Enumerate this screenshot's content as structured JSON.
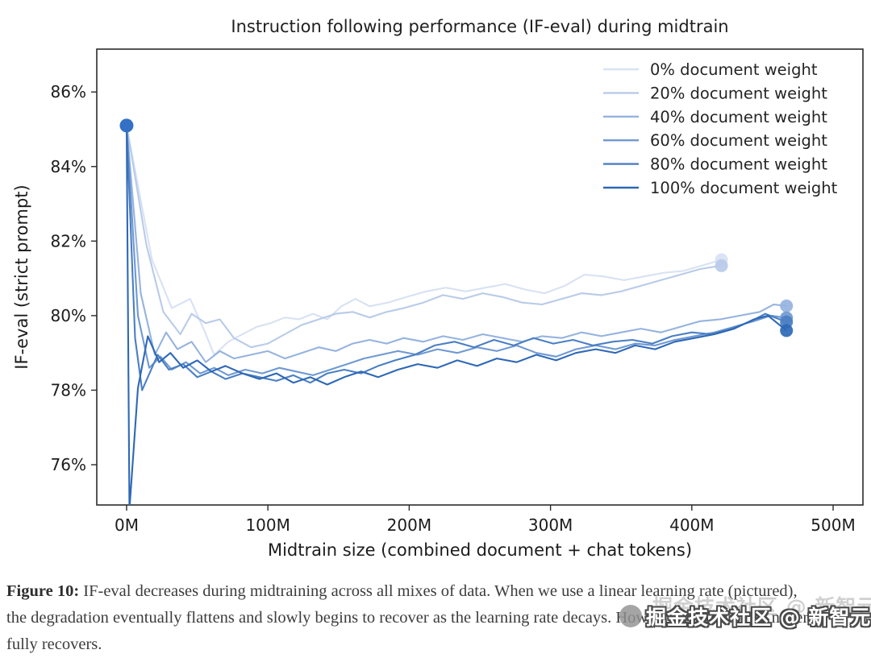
{
  "chart_data": {
    "type": "line",
    "title": "Instruction following performance (IF-eval) during midtrain",
    "xlabel": "Midtrain size (combined document + chat tokens)",
    "ylabel": "IF-eval (strict prompt)",
    "xlim": [
      -21.1,
      521.1
    ],
    "ylim": [
      74.92,
      87.15
    ],
    "grid": false,
    "legend_position": "upper right",
    "x_ticks": [
      {
        "v": 0,
        "label": "0M"
      },
      {
        "v": 100,
        "label": "100M"
      },
      {
        "v": 200,
        "label": "200M"
      },
      {
        "v": 300,
        "label": "300M"
      },
      {
        "v": 400,
        "label": "400M"
      },
      {
        "v": 500,
        "label": "500M"
      }
    ],
    "y_ticks": [
      {
        "v": 76,
        "label": "76%"
      },
      {
        "v": 78,
        "label": "78%"
      },
      {
        "v": 80,
        "label": "80%"
      },
      {
        "v": 82,
        "label": "82%"
      },
      {
        "v": 84,
        "label": "84%"
      },
      {
        "v": 86,
        "label": "86%"
      }
    ],
    "start_point": {
      "x": 0,
      "y": 85.1,
      "color": "#3370c6"
    },
    "series": [
      {
        "name": "0% document weight",
        "color": "#d8e2f3",
        "points": [
          [
            0,
            85.1
          ],
          [
            18,
            81.5
          ],
          [
            32,
            80.2
          ],
          [
            45,
            80.45
          ],
          [
            55,
            79.6
          ],
          [
            62,
            78.95
          ],
          [
            72,
            79.3
          ],
          [
            82,
            79.5
          ],
          [
            92,
            79.7
          ],
          [
            102,
            79.8
          ],
          [
            112,
            79.95
          ],
          [
            122,
            79.9
          ],
          [
            132,
            80.05
          ],
          [
            142,
            79.9
          ],
          [
            152,
            80.25
          ],
          [
            162,
            80.45
          ],
          [
            172,
            80.25
          ],
          [
            185,
            80.35
          ],
          [
            198,
            80.5
          ],
          [
            212,
            80.65
          ],
          [
            226,
            80.75
          ],
          [
            240,
            80.65
          ],
          [
            254,
            80.75
          ],
          [
            268,
            80.85
          ],
          [
            282,
            80.7
          ],
          [
            296,
            80.6
          ],
          [
            310,
            80.8
          ],
          [
            324,
            81.1
          ],
          [
            338,
            81.05
          ],
          [
            352,
            80.95
          ],
          [
            366,
            81.05
          ],
          [
            380,
            81.15
          ],
          [
            394,
            81.2
          ],
          [
            408,
            81.35
          ],
          [
            421,
            81.5
          ]
        ]
      },
      {
        "name": "20% document weight",
        "color": "#b8cbe9",
        "points": [
          [
            0,
            85.1
          ],
          [
            14,
            81.9
          ],
          [
            26,
            80.1
          ],
          [
            38,
            79.5
          ],
          [
            46,
            80.05
          ],
          [
            56,
            79.8
          ],
          [
            66,
            79.9
          ],
          [
            76,
            79.4
          ],
          [
            88,
            79.15
          ],
          [
            100,
            79.25
          ],
          [
            112,
            79.5
          ],
          [
            124,
            79.75
          ],
          [
            136,
            79.9
          ],
          [
            148,
            80.05
          ],
          [
            160,
            80.1
          ],
          [
            172,
            79.95
          ],
          [
            184,
            80.1
          ],
          [
            196,
            80.2
          ],
          [
            210,
            80.35
          ],
          [
            224,
            80.55
          ],
          [
            238,
            80.45
          ],
          [
            252,
            80.6
          ],
          [
            266,
            80.5
          ],
          [
            280,
            80.35
          ],
          [
            294,
            80.3
          ],
          [
            308,
            80.45
          ],
          [
            322,
            80.6
          ],
          [
            336,
            80.55
          ],
          [
            350,
            80.65
          ],
          [
            364,
            80.8
          ],
          [
            378,
            80.95
          ],
          [
            392,
            81.1
          ],
          [
            406,
            81.25
          ],
          [
            421,
            81.34
          ]
        ]
      },
      {
        "name": "40% document weight",
        "color": "#95b3df",
        "points": [
          [
            0,
            85.1
          ],
          [
            10,
            80.6
          ],
          [
            20,
            78.95
          ],
          [
            28,
            79.55
          ],
          [
            36,
            79.1
          ],
          [
            46,
            79.3
          ],
          [
            56,
            78.75
          ],
          [
            66,
            79.05
          ],
          [
            76,
            78.85
          ],
          [
            88,
            78.95
          ],
          [
            100,
            79.05
          ],
          [
            112,
            78.85
          ],
          [
            124,
            79.0
          ],
          [
            136,
            79.15
          ],
          [
            148,
            79.05
          ],
          [
            160,
            79.25
          ],
          [
            172,
            79.35
          ],
          [
            184,
            79.25
          ],
          [
            196,
            79.4
          ],
          [
            210,
            79.3
          ],
          [
            224,
            79.45
          ],
          [
            238,
            79.35
          ],
          [
            252,
            79.5
          ],
          [
            266,
            79.4
          ],
          [
            280,
            79.3
          ],
          [
            294,
            79.45
          ],
          [
            308,
            79.4
          ],
          [
            322,
            79.55
          ],
          [
            336,
            79.45
          ],
          [
            350,
            79.55
          ],
          [
            364,
            79.65
          ],
          [
            378,
            79.55
          ],
          [
            392,
            79.7
          ],
          [
            406,
            79.85
          ],
          [
            420,
            79.9
          ],
          [
            434,
            80.0
          ],
          [
            448,
            80.1
          ],
          [
            458,
            80.3
          ],
          [
            467,
            80.26
          ]
        ]
      },
      {
        "name": "60% document weight",
        "color": "#6f99d2",
        "points": [
          [
            0,
            85.1
          ],
          [
            8,
            80.0
          ],
          [
            16,
            78.6
          ],
          [
            24,
            78.9
          ],
          [
            32,
            78.55
          ],
          [
            42,
            78.75
          ],
          [
            52,
            78.45
          ],
          [
            62,
            78.6
          ],
          [
            72,
            78.4
          ],
          [
            84,
            78.55
          ],
          [
            96,
            78.45
          ],
          [
            108,
            78.6
          ],
          [
            120,
            78.5
          ],
          [
            132,
            78.4
          ],
          [
            144,
            78.55
          ],
          [
            156,
            78.7
          ],
          [
            168,
            78.85
          ],
          [
            180,
            78.95
          ],
          [
            192,
            79.05
          ],
          [
            206,
            78.95
          ],
          [
            220,
            79.1
          ],
          [
            234,
            79.0
          ],
          [
            248,
            79.15
          ],
          [
            262,
            79.05
          ],
          [
            276,
            79.2
          ],
          [
            290,
            79.0
          ],
          [
            304,
            78.9
          ],
          [
            318,
            79.1
          ],
          [
            332,
            79.2
          ],
          [
            346,
            79.1
          ],
          [
            360,
            79.25
          ],
          [
            374,
            79.2
          ],
          [
            388,
            79.35
          ],
          [
            402,
            79.45
          ],
          [
            416,
            79.55
          ],
          [
            430,
            79.7
          ],
          [
            444,
            79.85
          ],
          [
            456,
            80.0
          ],
          [
            467,
            79.94
          ]
        ]
      },
      {
        "name": "80% document weight",
        "color": "#4a7fc3",
        "points": [
          [
            0,
            85.1
          ],
          [
            6,
            79.4
          ],
          [
            11,
            78.0
          ],
          [
            22,
            78.95
          ],
          [
            30,
            78.55
          ],
          [
            40,
            78.7
          ],
          [
            50,
            78.35
          ],
          [
            60,
            78.5
          ],
          [
            70,
            78.3
          ],
          [
            82,
            78.45
          ],
          [
            94,
            78.35
          ],
          [
            106,
            78.25
          ],
          [
            118,
            78.4
          ],
          [
            130,
            78.2
          ],
          [
            142,
            78.45
          ],
          [
            154,
            78.55
          ],
          [
            166,
            78.45
          ],
          [
            178,
            78.65
          ],
          [
            190,
            78.8
          ],
          [
            204,
            78.95
          ],
          [
            218,
            79.2
          ],
          [
            232,
            79.3
          ],
          [
            246,
            79.15
          ],
          [
            260,
            79.35
          ],
          [
            274,
            79.2
          ],
          [
            288,
            79.4
          ],
          [
            302,
            79.25
          ],
          [
            316,
            79.35
          ],
          [
            330,
            79.2
          ],
          [
            344,
            79.3
          ],
          [
            358,
            79.35
          ],
          [
            372,
            79.25
          ],
          [
            386,
            79.45
          ],
          [
            400,
            79.55
          ],
          [
            414,
            79.5
          ],
          [
            428,
            79.65
          ],
          [
            442,
            79.85
          ],
          [
            452,
            80.05
          ],
          [
            467,
            79.83
          ]
        ]
      },
      {
        "name": "100% document weight",
        "color": "#2e68b6",
        "points": [
          [
            0,
            85.1
          ],
          [
            2,
            74.8
          ],
          [
            8,
            78.05
          ],
          [
            15,
            79.45
          ],
          [
            23,
            78.75
          ],
          [
            31,
            79.0
          ],
          [
            40,
            78.6
          ],
          [
            50,
            78.8
          ],
          [
            60,
            78.5
          ],
          [
            70,
            78.65
          ],
          [
            82,
            78.45
          ],
          [
            94,
            78.3
          ],
          [
            106,
            78.45
          ],
          [
            118,
            78.2
          ],
          [
            130,
            78.35
          ],
          [
            142,
            78.15
          ],
          [
            154,
            78.35
          ],
          [
            166,
            78.5
          ],
          [
            178,
            78.35
          ],
          [
            192,
            78.55
          ],
          [
            206,
            78.7
          ],
          [
            220,
            78.6
          ],
          [
            234,
            78.8
          ],
          [
            248,
            78.65
          ],
          [
            262,
            78.85
          ],
          [
            276,
            78.75
          ],
          [
            290,
            78.95
          ],
          [
            304,
            78.8
          ],
          [
            318,
            79.0
          ],
          [
            332,
            79.1
          ],
          [
            346,
            79.0
          ],
          [
            360,
            79.2
          ],
          [
            374,
            79.1
          ],
          [
            388,
            79.3
          ],
          [
            402,
            79.4
          ],
          [
            416,
            79.5
          ],
          [
            430,
            79.65
          ],
          [
            444,
            79.9
          ],
          [
            454,
            80.0
          ],
          [
            467,
            79.6
          ]
        ]
      }
    ]
  },
  "caption": {
    "label": "Figure 10:",
    "text": " IF-eval decreases during midtraining across all mixes of data. When we use a linear learning rate (pictured), the degradation eventually flattens and slowly begins to recover as the learning rate decays. However, performance never fully recovers."
  },
  "watermark": {
    "text": "掘金技术社区 @ 新智元"
  }
}
